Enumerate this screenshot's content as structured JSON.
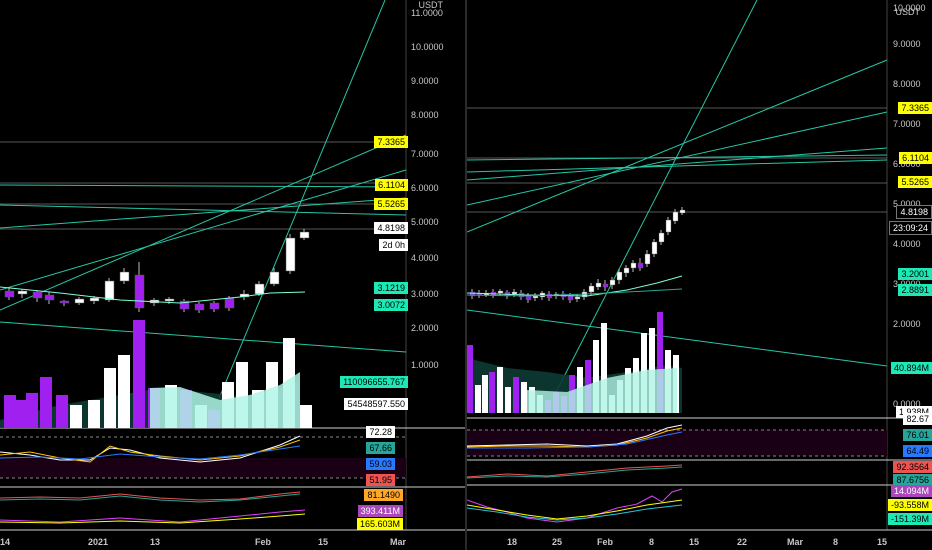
{
  "colors": {
    "bg": "#000000",
    "up": "#ffffff",
    "down": "#a020f0",
    "trend": "#26c6a6",
    "level": "#ffff00",
    "ma": "#7fffd4"
  },
  "left": {
    "unit_label": "USDT",
    "price_ticks": [
      "11.0000",
      "10.0000",
      "9.0000",
      "8.0000",
      "7.0000",
      "6.0000",
      "5.0000",
      "4.0000",
      "3.0000",
      "2.0000",
      "1.0000"
    ],
    "price_labels": [
      {
        "text": "7.3365",
        "style": "yellow"
      },
      {
        "text": "6.1104",
        "style": "yellow"
      },
      {
        "text": "5.5265",
        "style": "yellow"
      },
      {
        "text": "4.8198",
        "style": "white"
      },
      {
        "text": "2d 0h",
        "style": "white"
      },
      {
        "text": "3.1219",
        "style": "teal"
      },
      {
        "text": "3.0072",
        "style": "teal"
      },
      {
        "text": "110096655.767",
        "style": "teal"
      },
      {
        "text": "54548597.550",
        "style": "white"
      }
    ],
    "ind1_labels": [
      {
        "text": "72.28",
        "style": "white"
      },
      {
        "text": "67.66",
        "style": "green"
      },
      {
        "text": "59.03",
        "style": "blue"
      },
      {
        "text": "51.95",
        "style": "red"
      }
    ],
    "ind2_labels": [
      {
        "text": "81.1490",
        "style": "orange"
      },
      {
        "text": "393.411M",
        "style": "purple"
      },
      {
        "text": "165.603M",
        "style": "yellow"
      }
    ],
    "x_ticks": [
      "14",
      "2021",
      "13",
      "Feb",
      "15",
      "Mar"
    ]
  },
  "right": {
    "unit_label": "USDT",
    "price_ticks": [
      "10.0000",
      "9.0000",
      "8.0000",
      "7.0000",
      "6.0000",
      "5.0000",
      "4.0000",
      "3.0000",
      "2.0000",
      "0.0000"
    ],
    "price_labels": [
      {
        "text": "7.3365",
        "style": "yellow"
      },
      {
        "text": "6.1104",
        "style": "yellow"
      },
      {
        "text": "5.5265",
        "style": "yellow"
      },
      {
        "text": "4.8198",
        "style": "black"
      },
      {
        "text": "23:09:24",
        "style": "black"
      },
      {
        "text": "3.2001",
        "style": "teal"
      },
      {
        "text": "2.8891",
        "style": "teal"
      },
      {
        "text": "40.894M",
        "style": "teal"
      },
      {
        "text": "1.938M",
        "style": "white"
      }
    ],
    "ind1_labels": [
      {
        "text": "82.67",
        "style": "white"
      },
      {
        "text": "76.01",
        "style": "green"
      },
      {
        "text": "64.49",
        "style": "blue"
      }
    ],
    "ind2_labels": [
      {
        "text": "92.3564",
        "style": "red"
      },
      {
        "text": "87.6756",
        "style": "green"
      }
    ],
    "ind3_labels": [
      {
        "text": "14.094M",
        "style": "purple"
      },
      {
        "text": "-93.558M",
        "style": "yellow"
      },
      {
        "text": "-151.39M",
        "style": "teal"
      }
    ],
    "x_ticks": [
      "18",
      "25",
      "Feb",
      "8",
      "15",
      "22",
      "Mar",
      "8",
      "15"
    ]
  }
}
